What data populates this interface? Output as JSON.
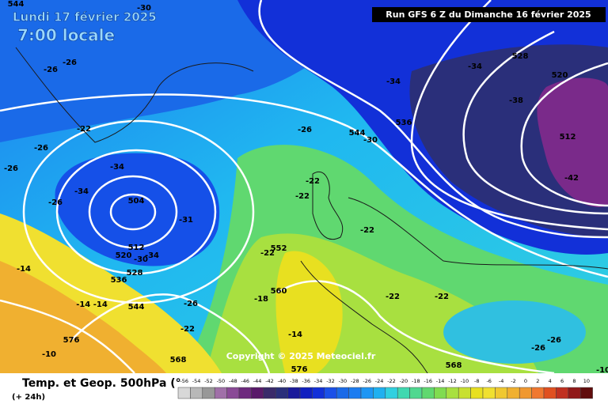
{
  "header": {
    "date": "Lundi 17 février 2025",
    "time": "7:00 locale",
    "run": "Run GFS 6 Z du Dimanche 16 février 2025"
  },
  "footer": {
    "title": "Temp. et Geop. 500hPa (°",
    "step": "(+ 24h)",
    "copyright": "Copyright © 2025 Meteociel.fr"
  },
  "legend": {
    "ticks": [
      "-56",
      "-54",
      "-52",
      "-50",
      "-48",
      "-46",
      "-44",
      "-42",
      "-40",
      "-38",
      "-36",
      "-34",
      "-32",
      "-30",
      "-28",
      "-26",
      "-24",
      "-22",
      "-20",
      "-18",
      "-16",
      "-14",
      "-12",
      "-10",
      "-8",
      "-6",
      "-4",
      "-2",
      "0",
      "2",
      "4",
      "6",
      "8",
      "10"
    ]
  },
  "labels": [
    "544",
    "-30",
    "-26",
    "-26",
    "-22",
    "-26",
    "-26",
    "-34",
    "-34",
    "-26",
    "504",
    "-31",
    "512",
    "520",
    "-30",
    "-34",
    "528",
    "536",
    "-14",
    "-14 -14",
    "544",
    "576",
    "-10",
    "-22",
    "-26",
    "-18",
    "560",
    "552",
    "-22",
    "-22",
    "-22",
    "-26",
    "544",
    "-30",
    "536",
    "-34",
    "-34",
    "528",
    "520",
    "-38",
    "512",
    "-42",
    "-22",
    "-22",
    "-22",
    "-26",
    "-26",
    "568",
    "576",
    "568",
    "-14",
    "-10"
  ]
}
